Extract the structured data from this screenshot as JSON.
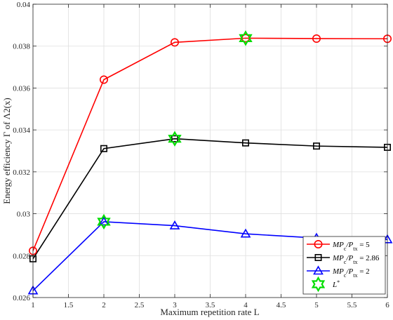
{
  "chart_data": {
    "type": "line",
    "title": "",
    "xlabel": "Maximum repetition rate L",
    "ylabel": "Energy efficiency Γ of Λ2(x)",
    "xlim": [
      1,
      6
    ],
    "ylim": [
      0.026,
      0.04
    ],
    "x_ticks": [
      "1",
      "1.5",
      "2",
      "2.5",
      "3",
      "3.5",
      "4",
      "4.5",
      "5",
      "5.5",
      "6"
    ],
    "y_ticks": [
      "0.026",
      "0.028",
      "0.03",
      "0.032",
      "0.034",
      "0.036",
      "0.038",
      "0.04"
    ],
    "grid": true,
    "legend_position": "bottom-right",
    "series": [
      {
        "name": "MP_c/P_tx = 5",
        "color": "#ff0000",
        "marker": "circle",
        "x": [
          1,
          2,
          3,
          4,
          5,
          6
        ],
        "y": [
          0.02823,
          0.0364,
          0.03818,
          0.03838,
          0.03836,
          0.03835
        ]
      },
      {
        "name": "MP_c/P_tx = 2.86",
        "color": "#000000",
        "marker": "square",
        "x": [
          1,
          2,
          3,
          4,
          5,
          6
        ],
        "y": [
          0.02785,
          0.03311,
          0.03358,
          0.03338,
          0.03323,
          0.03317
        ]
      },
      {
        "name": "MP_c/P_tx = 2",
        "color": "#0000ff",
        "marker": "triangle",
        "x": [
          1,
          2,
          3,
          4,
          5,
          6
        ],
        "y": [
          0.02633,
          0.02962,
          0.02943,
          0.02904,
          0.02884,
          0.02877
        ]
      }
    ],
    "optimal_points": {
      "name": "L*",
      "color": "#00dd00",
      "marker": "hexagram",
      "x": [
        2,
        3,
        4
      ],
      "y": [
        0.02962,
        0.03358,
        0.03838
      ]
    }
  }
}
